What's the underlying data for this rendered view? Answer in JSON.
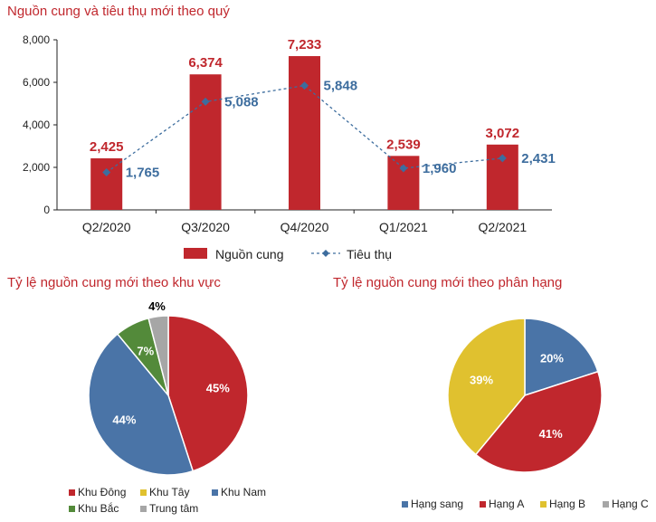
{
  "titles": {
    "main": "Nguồn cung và tiêu thụ mới theo quý",
    "region": "Tỷ lệ nguồn cung mới theo khu vực",
    "grade": "Tỷ lệ nguồn cung mới theo phân hạng"
  },
  "colors": {
    "supply": "#c0272d",
    "consumption": "#3d6d9e",
    "east": "#c0272d",
    "west": "#e0c12f",
    "south": "#4a74a7",
    "north": "#538a3a",
    "center": "#a6a6a6"
  },
  "chart_data": [
    {
      "type": "bar",
      "title": "Nguồn cung và tiêu thụ mới theo quý",
      "categories": [
        "Q2/2020",
        "Q3/2020",
        "Q4/2020",
        "Q1/2021",
        "Q2/2021"
      ],
      "ylim": [
        0,
        8000
      ],
      "yticks": [
        "0",
        "2,000",
        "4,000",
        "6,000",
        "8,000"
      ],
      "series": [
        {
          "name": "Nguồn cung",
          "kind": "bar",
          "values": [
            2425,
            6374,
            7233,
            2539,
            3072
          ],
          "labels": [
            "2,425",
            "6,374",
            "7,233",
            "2,539",
            "3,072"
          ]
        },
        {
          "name": "Tiêu thụ",
          "kind": "line",
          "values": [
            1765,
            5088,
            5848,
            1960,
            2431
          ],
          "labels": [
            "1,765",
            "5,088",
            "5,848",
            "1,960",
            "2,431"
          ]
        }
      ],
      "legend": "bottom"
    },
    {
      "type": "pie",
      "title": "Tỷ lệ nguồn cung mới theo khu vực",
      "slices": [
        {
          "name": "Khu Đông",
          "value": 45,
          "label": "45%"
        },
        {
          "name": "Khu Nam",
          "value": 44,
          "label": "44%"
        },
        {
          "name": "Khu Bắc",
          "value": 7,
          "label": "7%"
        },
        {
          "name": "Trung tâm",
          "value": 4,
          "label": "4%"
        }
      ],
      "legend_items": [
        "Khu Đông",
        "Khu Tây",
        "Khu Nam",
        "Khu Bắc",
        "Trung tâm"
      ],
      "legend": "bottom"
    },
    {
      "type": "pie",
      "title": "Tỷ lệ nguồn cung mới theo phân hạng",
      "slices": [
        {
          "name": "Hạng sang",
          "value": 20,
          "label": "20%"
        },
        {
          "name": "Hạng A",
          "value": 41,
          "label": "41%"
        },
        {
          "name": "Hạng B",
          "value": 39,
          "label": "39%"
        }
      ],
      "legend_items": [
        "Hạng sang",
        "Hạng A",
        "Hạng B",
        "Hạng C"
      ],
      "legend": "bottom"
    }
  ]
}
